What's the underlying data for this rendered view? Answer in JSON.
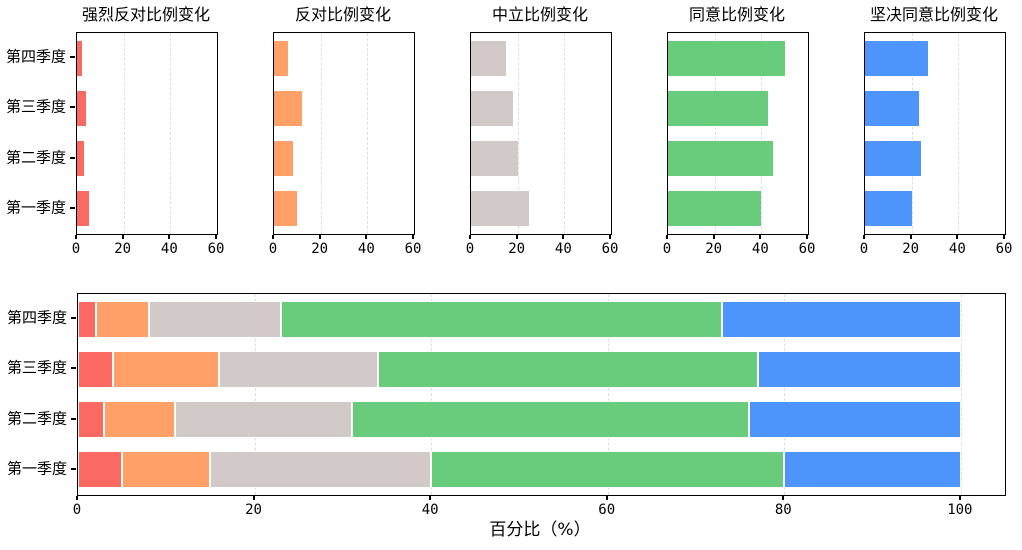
{
  "figure": {
    "background": "#ffffff",
    "row_labels": [
      "第四季度",
      "第三季度",
      "第二季度",
      "第一季度"
    ],
    "row_order": "top-to-bottom"
  },
  "bottom_axis": {
    "xlabel": "百分比（%）"
  },
  "chart_data": [
    {
      "type": "bar",
      "orientation": "horizontal",
      "title": "强烈反对比例变化",
      "categories": [
        "第四季度",
        "第三季度",
        "第二季度",
        "第一季度"
      ],
      "values": [
        2,
        4,
        3,
        5
      ],
      "color": "#fb6a62",
      "xlim": [
        0,
        60
      ],
      "xticks": [
        0,
        20,
        40,
        60
      ],
      "grid": true,
      "category_labels_visible": true
    },
    {
      "type": "bar",
      "orientation": "horizontal",
      "title": "反对比例变化",
      "categories": [
        "第四季度",
        "第三季度",
        "第二季度",
        "第一季度"
      ],
      "values": [
        6,
        12,
        8,
        10
      ],
      "color": "#ffa068",
      "xlim": [
        0,
        60
      ],
      "xticks": [
        0,
        20,
        40,
        60
      ],
      "grid": true,
      "category_labels_visible": false
    },
    {
      "type": "bar",
      "orientation": "horizontal",
      "title": "中立比例变化",
      "categories": [
        "第四季度",
        "第三季度",
        "第二季度",
        "第一季度"
      ],
      "values": [
        15,
        18,
        20,
        25
      ],
      "color": "#d2c9c9",
      "xlim": [
        0,
        60
      ],
      "xticks": [
        0,
        20,
        40,
        60
      ],
      "grid": true,
      "category_labels_visible": false
    },
    {
      "type": "bar",
      "orientation": "horizontal",
      "title": "同意比例变化",
      "categories": [
        "第四季度",
        "第三季度",
        "第二季度",
        "第一季度"
      ],
      "values": [
        50,
        43,
        45,
        40
      ],
      "color": "#69cb7c",
      "xlim": [
        0,
        60
      ],
      "xticks": [
        0,
        20,
        40,
        60
      ],
      "grid": true,
      "category_labels_visible": false
    },
    {
      "type": "bar",
      "orientation": "horizontal",
      "title": "坚决同意比例变化",
      "categories": [
        "第四季度",
        "第三季度",
        "第二季度",
        "第一季度"
      ],
      "values": [
        27,
        23,
        24,
        20
      ],
      "color": "#4d94fb",
      "xlim": [
        0,
        60
      ],
      "xticks": [
        0,
        20,
        40,
        60
      ],
      "grid": true,
      "category_labels_visible": false
    },
    {
      "type": "stacked_bar",
      "orientation": "horizontal",
      "title": "",
      "categories": [
        "第四季度",
        "第三季度",
        "第二季度",
        "第一季度"
      ],
      "series": [
        {
          "name": "强烈反对",
          "color": "#fb6a62",
          "values": [
            2,
            4,
            3,
            5
          ]
        },
        {
          "name": "反对",
          "color": "#ffa068",
          "values": [
            6,
            12,
            8,
            10
          ]
        },
        {
          "name": "中立",
          "color": "#d2c9c9",
          "values": [
            15,
            18,
            20,
            25
          ]
        },
        {
          "name": "同意",
          "color": "#69cb7c",
          "values": [
            50,
            43,
            45,
            40
          ]
        },
        {
          "name": "坚决同意",
          "color": "#4d94fb",
          "values": [
            27,
            23,
            24,
            20
          ]
        }
      ],
      "xlabel": "百分比（%）",
      "xlim": [
        0,
        105
      ],
      "xticks": [
        0,
        20,
        40,
        60,
        80,
        100
      ],
      "grid": true,
      "category_labels_visible": true,
      "legend": "none"
    }
  ]
}
